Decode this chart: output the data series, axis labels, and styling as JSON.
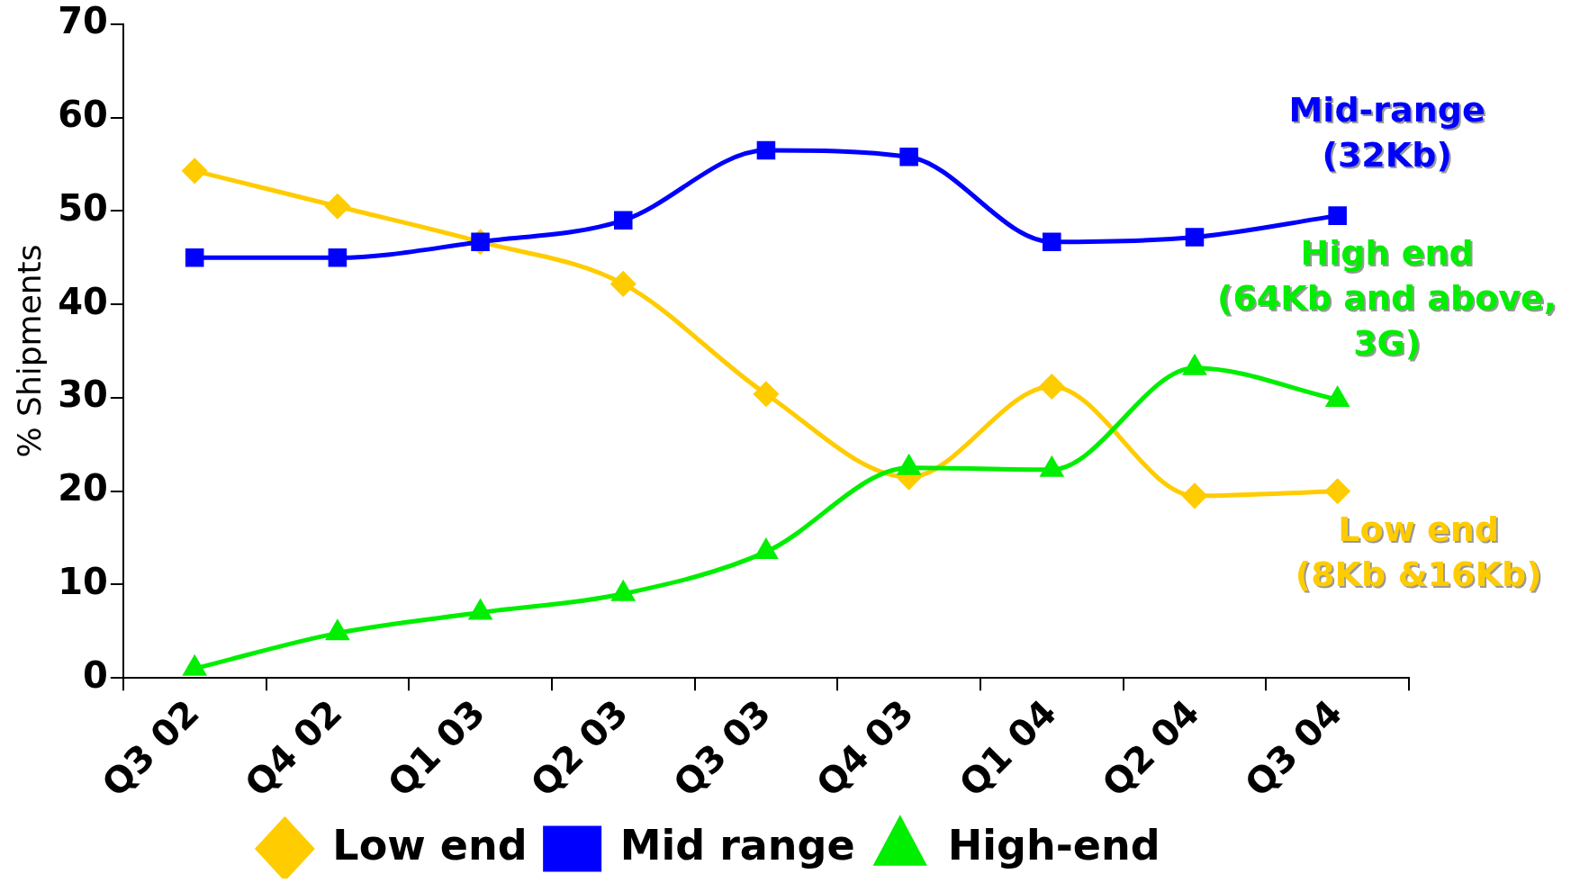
{
  "chart_data": {
    "type": "line",
    "ylabel": "% Shipments",
    "categories": [
      "Q3 02",
      "Q4 02",
      "Q1 03",
      "Q2 03",
      "Q3 03",
      "Q4 03",
      "Q1 04",
      "Q2 04",
      "Q3 04"
    ],
    "series": [
      {
        "name": "Low end",
        "color": "#ffcc00",
        "marker": "diamond",
        "values": [
          54.3,
          50.5,
          46.7,
          42.2,
          30.4,
          21.5,
          31.2,
          19.5,
          20
        ]
      },
      {
        "name": "Mid range",
        "color": "#0000ff",
        "marker": "square",
        "values": [
          45,
          45,
          46.7,
          49,
          56.5,
          55.8,
          46.7,
          47.2,
          49.5
        ]
      },
      {
        "name": "High-end",
        "color": "#00ee00",
        "marker": "triangle",
        "values": [
          1,
          4.8,
          7,
          9,
          13.5,
          22.5,
          22.3,
          33.2,
          29.8
        ]
      }
    ],
    "ylim": [
      0,
      70
    ],
    "yticks": [
      0,
      10,
      20,
      30,
      40,
      50,
      60,
      70
    ],
    "grid": false,
    "legend": "bottom",
    "line_style": "solid",
    "annotations": [
      "Low end\n(8Kb &16Kb)",
      "Mid-range\n(32Kb)",
      "High end\n(64Kb and above,\n3G)"
    ]
  }
}
